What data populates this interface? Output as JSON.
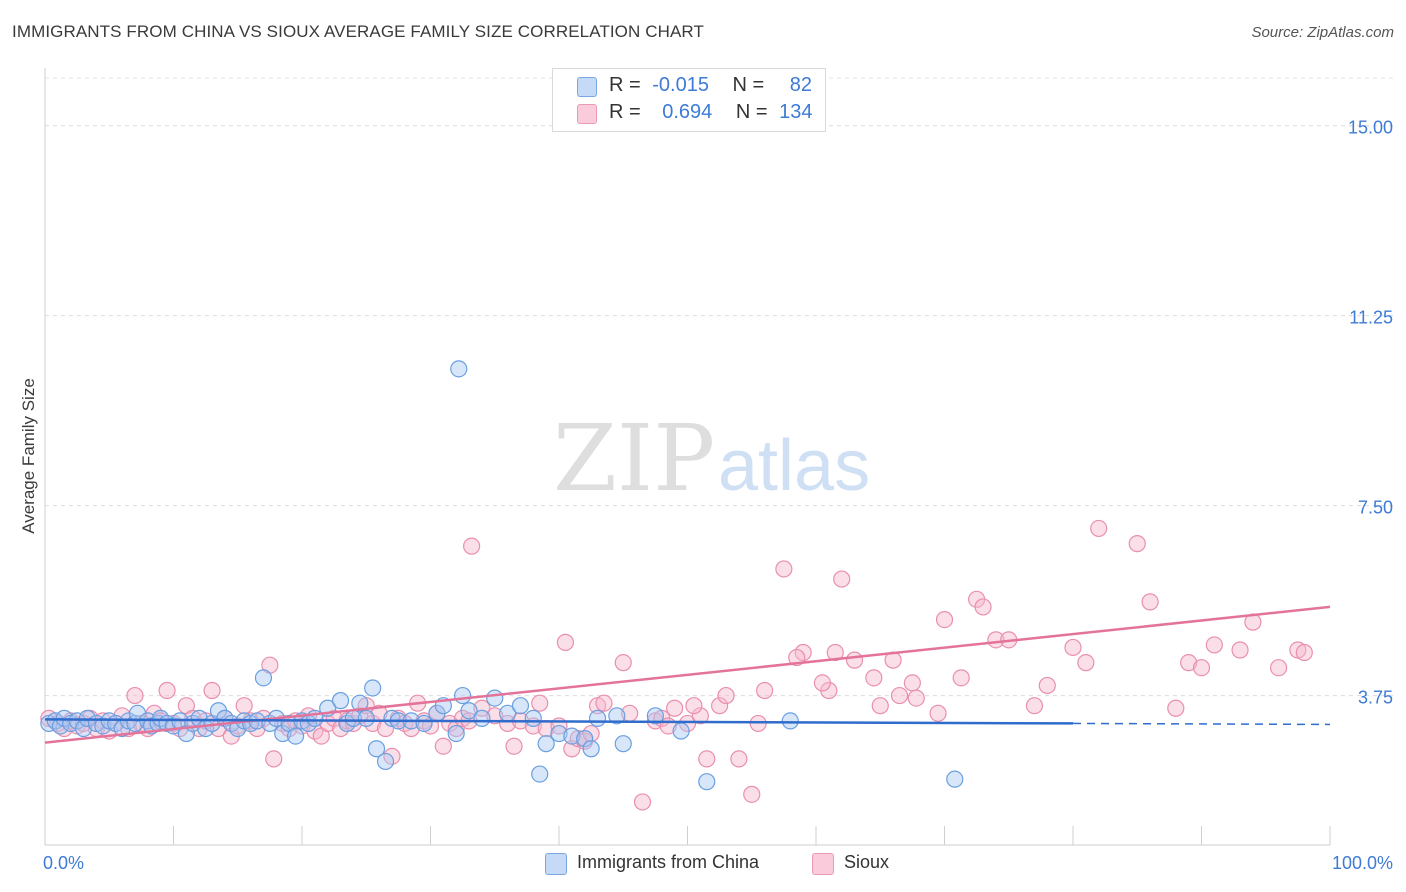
{
  "header": {
    "title": "IMMIGRANTS FROM CHINA VS SIOUX AVERAGE FAMILY SIZE CORRELATION CHART",
    "source": "Source: ZipAtlas.com"
  },
  "legend": {
    "rows": [
      {
        "r_label": "R =",
        "r_value": "-0.015",
        "n_label": "N =",
        "n_value": "82"
      },
      {
        "r_label": "R =",
        "r_value": "0.694",
        "n_label": "N =",
        "n_value": "134"
      }
    ]
  },
  "bottom_legend": {
    "series1": "Immigrants from China",
    "series2": "Sioux"
  },
  "watermark": {
    "zip": "ZIP",
    "atlas": "atlas"
  },
  "colors": {
    "blue_fill": "#a9c8f3",
    "blue_stroke": "#6a9fe0",
    "blue_line": "#2f6ccc",
    "pink_fill": "#f6b8cc",
    "pink_stroke": "#e98fae",
    "pink_line": "#e4739a",
    "tick_color": "#3d7bd6"
  },
  "chart_data": {
    "type": "scatter",
    "title": "IMMIGRANTS FROM CHINA VS SIOUX AVERAGE FAMILY SIZE CORRELATION CHART",
    "xlabel": "",
    "ylabel": "Average Family Size",
    "xlim": [
      0,
      100
    ],
    "ylim": [
      0.8,
      16.1
    ],
    "x_tick_labels": [
      "0.0%",
      "100.0%"
    ],
    "y_ticks": [
      3.75,
      7.5,
      11.25,
      15.0
    ],
    "y_tick_labels": [
      "3.75",
      "7.50",
      "11.25",
      "15.00"
    ],
    "grid": "horizontal dashed",
    "legend_position": "top-center",
    "series": [
      {
        "name": "Immigrants from China",
        "r": -0.015,
        "n": 82,
        "trend": {
          "x": [
            0,
            80
          ],
          "y": [
            3.28,
            3.2
          ],
          "dashed_extension_to_x": 100,
          "dashed_end_y": 3.18
        },
        "points": [
          [
            0.3,
            3.2
          ],
          [
            0.8,
            3.25
          ],
          [
            1.2,
            3.15
          ],
          [
            1.5,
            3.3
          ],
          [
            2.0,
            3.2
          ],
          [
            2.5,
            3.25
          ],
          [
            3.0,
            3.1
          ],
          [
            3.3,
            3.3
          ],
          [
            4.0,
            3.2
          ],
          [
            4.5,
            3.15
          ],
          [
            5.0,
            3.25
          ],
          [
            5.5,
            3.2
          ],
          [
            6.0,
            3.1
          ],
          [
            6.5,
            3.25
          ],
          [
            7.0,
            3.2
          ],
          [
            7.2,
            3.4
          ],
          [
            8.0,
            3.25
          ],
          [
            8.3,
            3.15
          ],
          [
            8.8,
            3.2
          ],
          [
            9.0,
            3.3
          ],
          [
            9.5,
            3.2
          ],
          [
            10.0,
            3.15
          ],
          [
            10.5,
            3.25
          ],
          [
            11.0,
            3.0
          ],
          [
            11.5,
            3.2
          ],
          [
            12.0,
            3.3
          ],
          [
            12.5,
            3.1
          ],
          [
            13.0,
            3.2
          ],
          [
            13.5,
            3.45
          ],
          [
            14.0,
            3.3
          ],
          [
            14.5,
            3.2
          ],
          [
            15.0,
            3.1
          ],
          [
            15.5,
            3.25
          ],
          [
            16.0,
            3.2
          ],
          [
            16.5,
            3.25
          ],
          [
            17.0,
            4.1
          ],
          [
            17.5,
            3.2
          ],
          [
            18.0,
            3.3
          ],
          [
            18.5,
            3.0
          ],
          [
            19.0,
            3.2
          ],
          [
            19.5,
            2.95
          ],
          [
            20.0,
            3.25
          ],
          [
            20.5,
            3.2
          ],
          [
            21.0,
            3.3
          ],
          [
            22.0,
            3.5
          ],
          [
            23.0,
            3.65
          ],
          [
            23.5,
            3.2
          ],
          [
            24.0,
            3.3
          ],
          [
            24.5,
            3.6
          ],
          [
            25.0,
            3.3
          ],
          [
            25.5,
            3.9
          ],
          [
            25.8,
            2.7
          ],
          [
            26.5,
            2.45
          ],
          [
            27.0,
            3.3
          ],
          [
            27.5,
            3.25
          ],
          [
            28.5,
            3.25
          ],
          [
            29.5,
            3.2
          ],
          [
            30.5,
            3.4
          ],
          [
            31.0,
            3.55
          ],
          [
            32.0,
            3.0
          ],
          [
            32.5,
            3.75
          ],
          [
            33.0,
            3.45
          ],
          [
            34.0,
            3.3
          ],
          [
            35.0,
            3.7
          ],
          [
            36.0,
            3.4
          ],
          [
            37.0,
            3.55
          ],
          [
            38.0,
            3.3
          ],
          [
            38.5,
            2.2
          ],
          [
            39.0,
            2.8
          ],
          [
            40.0,
            3.0
          ],
          [
            41.0,
            2.95
          ],
          [
            32.2,
            10.2
          ],
          [
            42.0,
            2.9
          ],
          [
            42.5,
            2.7
          ],
          [
            43.0,
            3.3
          ],
          [
            44.5,
            3.35
          ],
          [
            45.0,
            2.8
          ],
          [
            47.5,
            3.35
          ],
          [
            49.5,
            3.05
          ],
          [
            51.5,
            2.05
          ],
          [
            58.0,
            3.25
          ],
          [
            70.8,
            2.1
          ]
        ]
      },
      {
        "name": "Sioux",
        "r": 0.694,
        "n": 134,
        "trend": {
          "x": [
            0,
            100
          ],
          "y": [
            2.82,
            5.5
          ]
        },
        "points": [
          [
            0.3,
            3.3
          ],
          [
            1.0,
            3.2
          ],
          [
            1.5,
            3.1
          ],
          [
            2.0,
            3.25
          ],
          [
            2.5,
            3.15
          ],
          [
            3.0,
            3.2
          ],
          [
            3.5,
            3.3
          ],
          [
            4.0,
            3.1
          ],
          [
            4.5,
            3.25
          ],
          [
            5.0,
            3.05
          ],
          [
            5.5,
            3.2
          ],
          [
            6.0,
            3.35
          ],
          [
            6.5,
            3.1
          ],
          [
            7.0,
            3.75
          ],
          [
            7.5,
            3.2
          ],
          [
            8.0,
            3.1
          ],
          [
            8.5,
            3.4
          ],
          [
            9.0,
            3.25
          ],
          [
            9.5,
            3.85
          ],
          [
            10.0,
            3.2
          ],
          [
            10.5,
            3.1
          ],
          [
            11.0,
            3.55
          ],
          [
            11.5,
            3.3
          ],
          [
            12.0,
            3.1
          ],
          [
            12.5,
            3.25
          ],
          [
            13.0,
            3.85
          ],
          [
            13.5,
            3.1
          ],
          [
            14.0,
            3.3
          ],
          [
            14.5,
            2.95
          ],
          [
            15.0,
            3.15
          ],
          [
            15.5,
            3.55
          ],
          [
            16.0,
            3.25
          ],
          [
            16.5,
            3.1
          ],
          [
            17.0,
            3.3
          ],
          [
            17.5,
            4.35
          ],
          [
            17.8,
            2.5
          ],
          [
            18.5,
            3.2
          ],
          [
            19.0,
            3.1
          ],
          [
            19.5,
            3.25
          ],
          [
            20.0,
            3.15
          ],
          [
            20.5,
            3.35
          ],
          [
            21.0,
            3.05
          ],
          [
            21.5,
            2.95
          ],
          [
            22.0,
            3.2
          ],
          [
            22.5,
            3.3
          ],
          [
            23.0,
            3.1
          ],
          [
            23.5,
            3.25
          ],
          [
            24.0,
            3.2
          ],
          [
            24.5,
            3.35
          ],
          [
            25.0,
            3.55
          ],
          [
            25.5,
            3.2
          ],
          [
            26.0,
            3.4
          ],
          [
            26.5,
            3.1
          ],
          [
            27.0,
            2.55
          ],
          [
            27.5,
            3.3
          ],
          [
            28.0,
            3.2
          ],
          [
            28.5,
            3.1
          ],
          [
            29.0,
            3.6
          ],
          [
            29.5,
            3.25
          ],
          [
            30.0,
            3.15
          ],
          [
            30.5,
            3.4
          ],
          [
            31.0,
            2.75
          ],
          [
            31.5,
            3.2
          ],
          [
            32.0,
            3.1
          ],
          [
            32.5,
            3.3
          ],
          [
            33.0,
            3.25
          ],
          [
            34.0,
            3.5
          ],
          [
            35.0,
            3.35
          ],
          [
            36.0,
            3.2
          ],
          [
            37.0,
            3.25
          ],
          [
            38.0,
            3.15
          ],
          [
            38.5,
            3.6
          ],
          [
            39.0,
            3.1
          ],
          [
            40.0,
            3.15
          ],
          [
            41.0,
            2.7
          ],
          [
            41.5,
            2.9
          ],
          [
            42.0,
            2.85
          ],
          [
            42.5,
            3.0
          ],
          [
            43.0,
            3.55
          ],
          [
            43.5,
            3.6
          ],
          [
            45.0,
            4.4
          ],
          [
            46.5,
            1.65
          ],
          [
            47.5,
            3.25
          ],
          [
            48.0,
            3.3
          ],
          [
            48.5,
            3.15
          ],
          [
            49.0,
            3.5
          ],
          [
            50.0,
            3.2
          ],
          [
            51.0,
            3.35
          ],
          [
            52.5,
            3.55
          ],
          [
            53.0,
            3.75
          ],
          [
            55.0,
            1.8
          ],
          [
            56.0,
            3.85
          ],
          [
            57.5,
            6.25
          ],
          [
            59.0,
            4.6
          ],
          [
            62.0,
            6.05
          ],
          [
            61.0,
            3.85
          ],
          [
            63.0,
            4.45
          ],
          [
            64.5,
            4.1
          ],
          [
            65.0,
            3.55
          ],
          [
            66.0,
            4.45
          ],
          [
            67.5,
            4.0
          ],
          [
            70.0,
            5.25
          ],
          [
            72.5,
            5.65
          ],
          [
            74.0,
            4.85
          ],
          [
            77.0,
            3.55
          ],
          [
            78.0,
            3.95
          ],
          [
            80.0,
            4.7
          ],
          [
            81.0,
            4.4
          ],
          [
            82.0,
            7.05
          ],
          [
            85.0,
            6.75
          ],
          [
            86.0,
            5.6
          ],
          [
            88.0,
            3.5
          ],
          [
            89.0,
            4.4
          ],
          [
            90.0,
            4.3
          ],
          [
            91.0,
            4.75
          ],
          [
            93.0,
            4.65
          ],
          [
            94.0,
            5.2
          ],
          [
            96.0,
            4.3
          ],
          [
            97.5,
            4.65
          ],
          [
            98.0,
            4.6
          ],
          [
            33.2,
            6.7
          ],
          [
            36.5,
            2.75
          ],
          [
            40.5,
            4.8
          ],
          [
            45.5,
            3.4
          ],
          [
            50.5,
            3.55
          ],
          [
            51.5,
            2.5
          ],
          [
            54.0,
            2.5
          ],
          [
            55.5,
            3.2
          ],
          [
            58.5,
            4.5
          ],
          [
            60.5,
            4.0
          ],
          [
            61.5,
            4.6
          ],
          [
            66.5,
            3.75
          ],
          [
            67.8,
            3.7
          ],
          [
            69.5,
            3.4
          ],
          [
            71.3,
            4.1
          ],
          [
            73.0,
            5.5
          ],
          [
            75.0,
            4.85
          ]
        ]
      }
    ]
  }
}
